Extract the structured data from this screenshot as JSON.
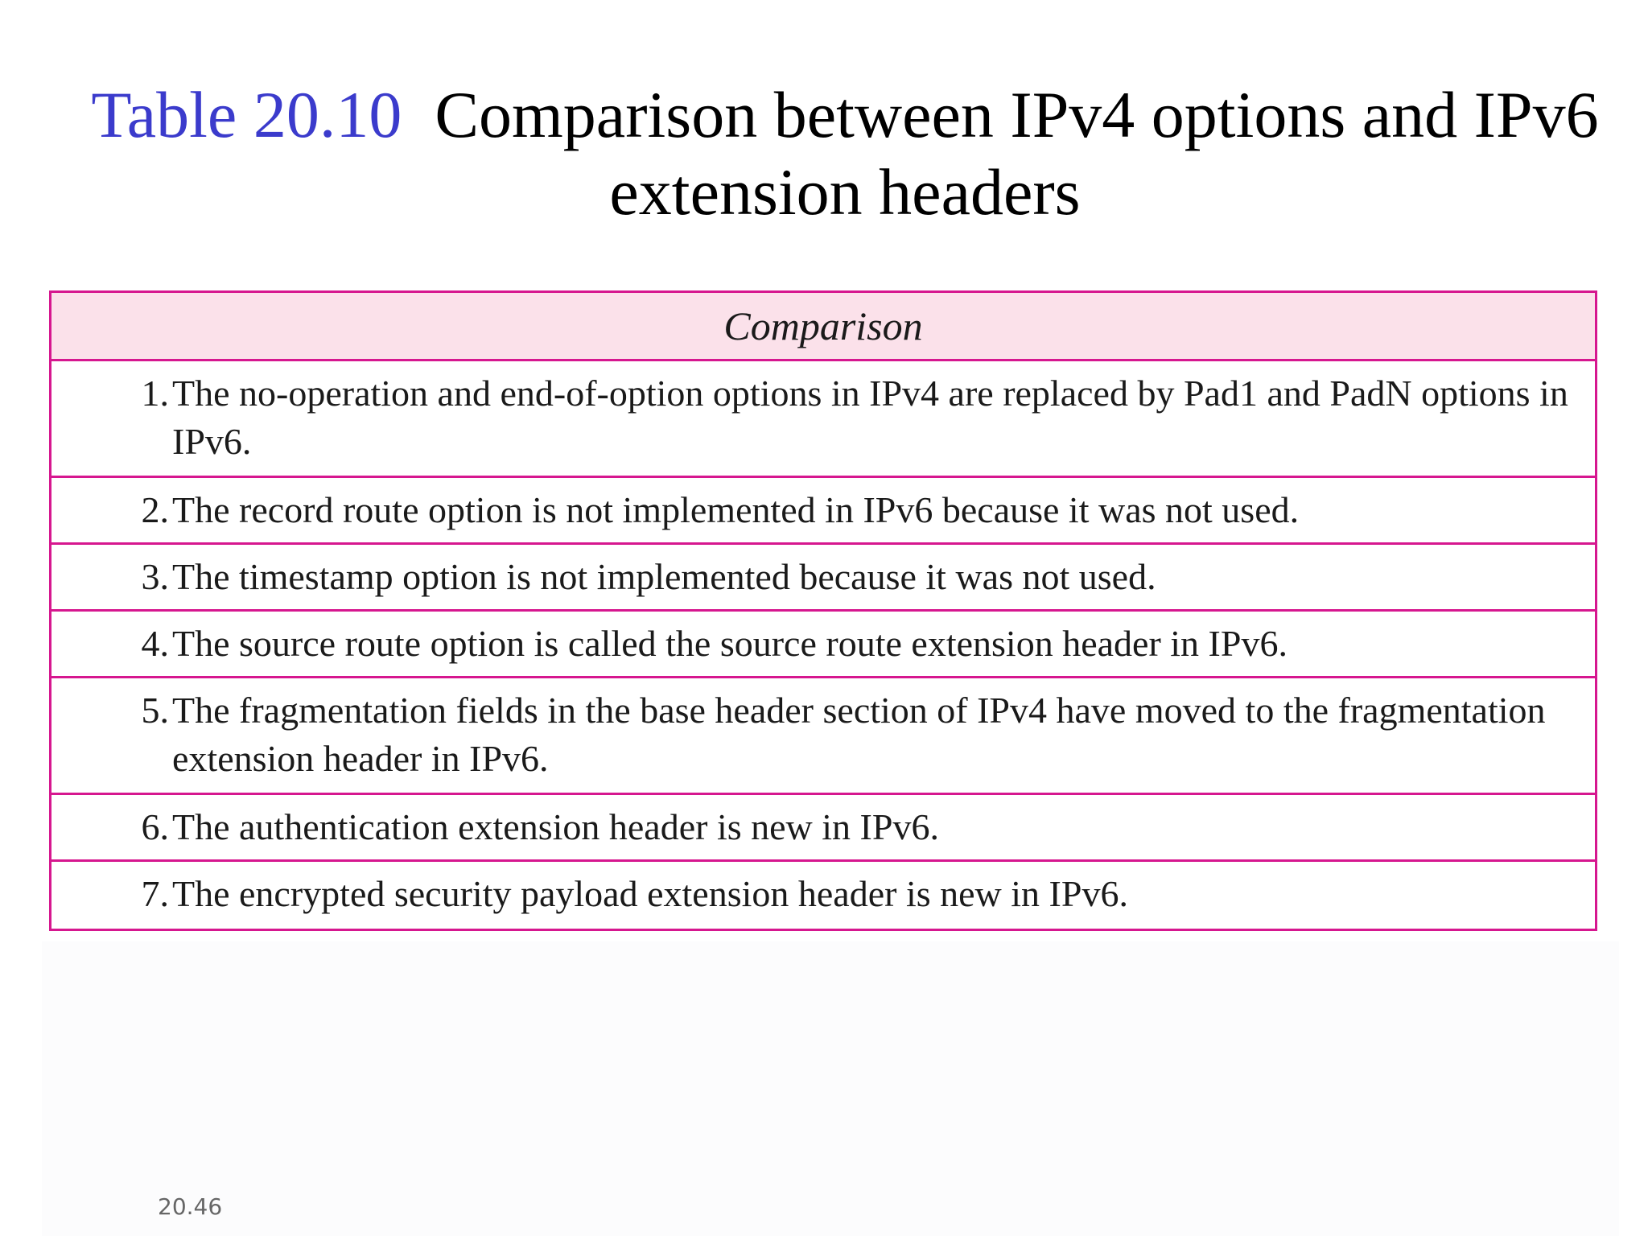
{
  "title": {
    "label": "Table 20.10",
    "text": "Comparison between IPv4 options and IPv6 extension headers"
  },
  "table": {
    "header": "Comparison",
    "rows": [
      {
        "num": "1.",
        "text": "The no-operation and end-of-option options in IPv4 are replaced by Pad1 and PadN options in IPv6."
      },
      {
        "num": "2.",
        "text": "The record route option is not implemented in IPv6 because it was not used."
      },
      {
        "num": "3.",
        "text": "The timestamp option is not implemented because it was not used."
      },
      {
        "num": "4.",
        "text": "The source route option is called the source route extension header in IPv6."
      },
      {
        "num": "5.",
        "text": "The fragmentation fields in the base header section of IPv4 have moved to the fragmentation extension header in IPv6."
      },
      {
        "num": "6.",
        "text": "The authentication extension header is new in IPv6."
      },
      {
        "num": "7.",
        "text": "The encrypted security payload extension header is new in IPv6."
      }
    ]
  },
  "page_number": "20.46",
  "colors": {
    "title_label": "#3b3bcc",
    "table_border": "#d6178f",
    "header_fill": "#fbe1ea"
  }
}
